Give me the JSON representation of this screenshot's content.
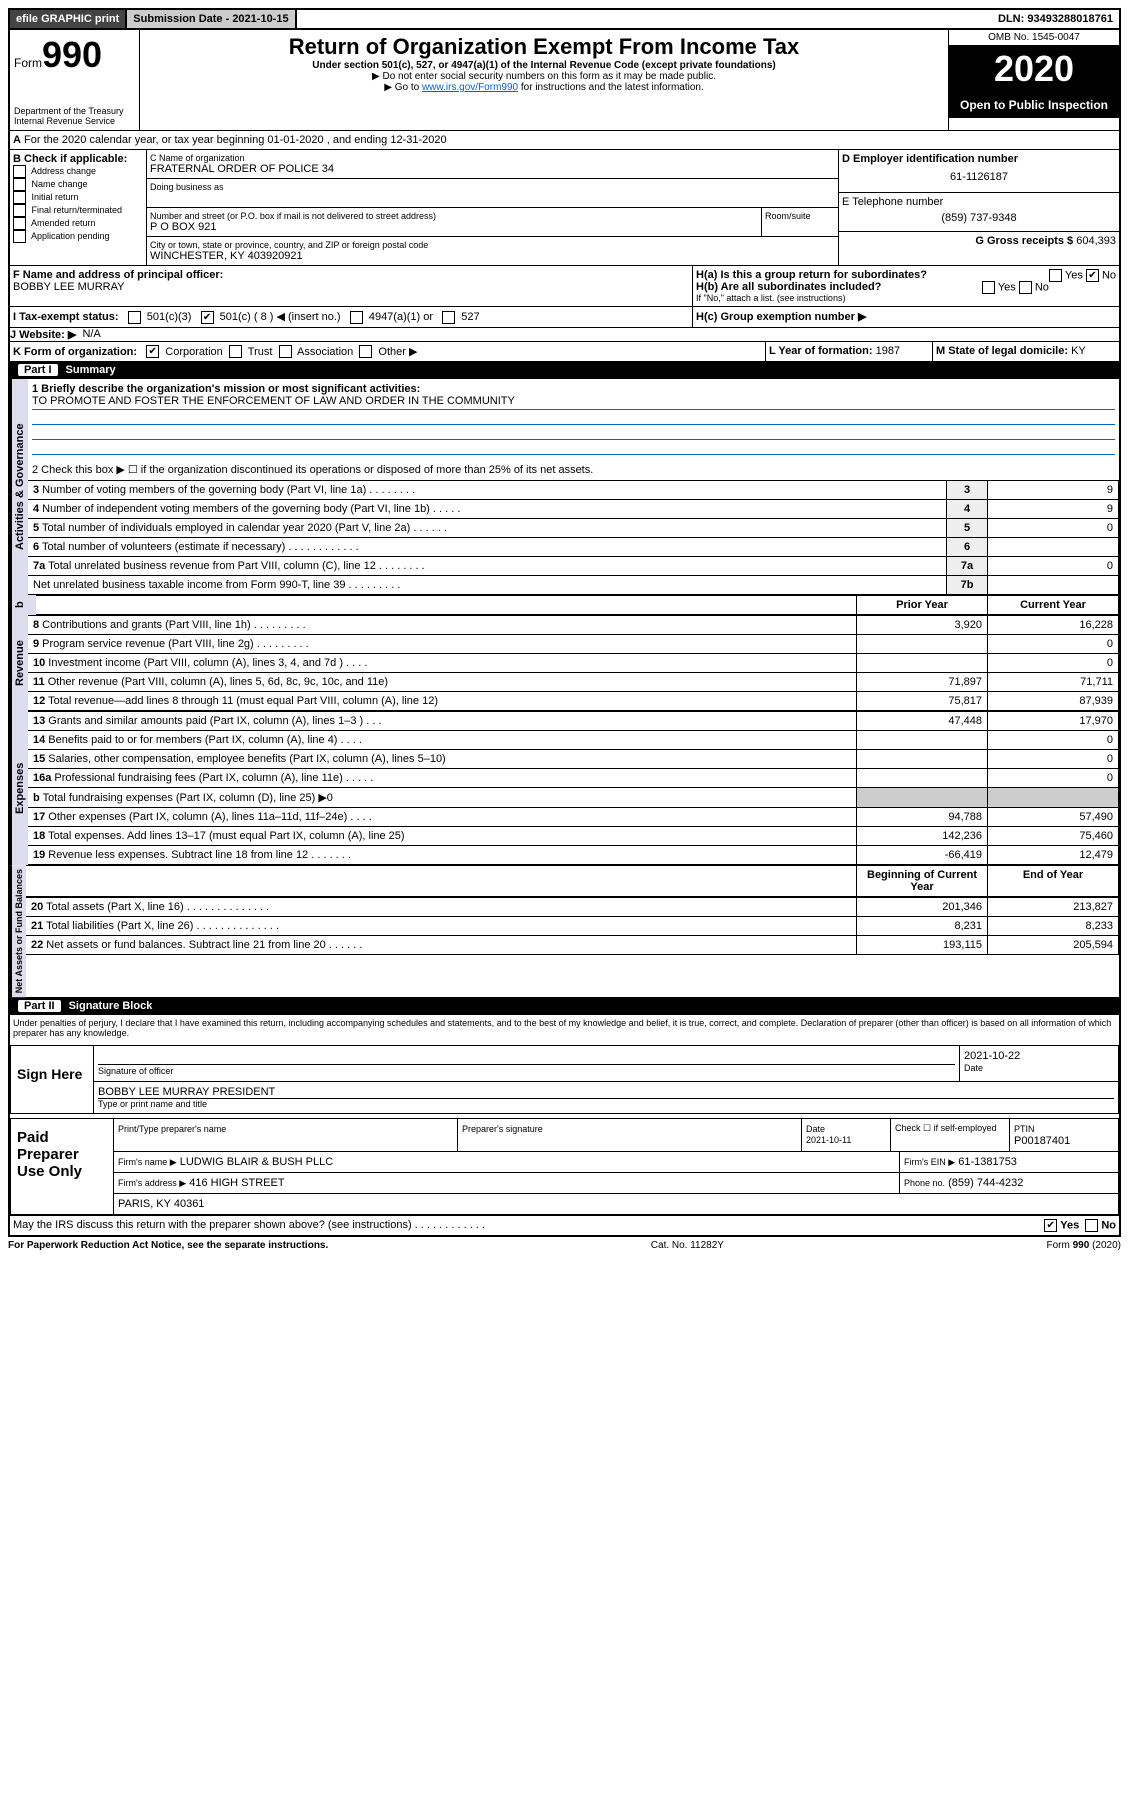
{
  "topbar": {
    "efile": "efile GRAPHIC print",
    "submission_label": "Submission Date - 2021-10-15",
    "dln": "DLN: 93493288018761"
  },
  "header": {
    "form_prefix": "Form",
    "form_number": "990",
    "dept": "Department of the Treasury",
    "irs": "Internal Revenue Service",
    "title": "Return of Organization Exempt From Income Tax",
    "subtitle": "Under section 501(c), 527, or 4947(a)(1) of the Internal Revenue Code (except private foundations)",
    "note1": "▶ Do not enter social security numbers on this form as it may be made public.",
    "note2_pre": "▶ Go to ",
    "note2_link": "www.irs.gov/Form990",
    "note2_post": " for instructions and the latest information.",
    "omb": "OMB No. 1545-0047",
    "year": "2020",
    "open": "Open to Public Inspection"
  },
  "period": "For the 2020 calendar year, or tax year beginning 01-01-2020    , and ending 12-31-2020",
  "blockB": {
    "label": "B Check if applicable:",
    "items": [
      "Address change",
      "Name change",
      "Initial return",
      "Final return/terminated",
      "Amended return",
      "Application pending"
    ]
  },
  "blockC": {
    "name_label": "C Name of organization",
    "name": "FRATERNAL ORDER OF POLICE 34",
    "dba_label": "Doing business as",
    "street_label": "Number and street (or P.O. box if mail is not delivered to street address)",
    "room_label": "Room/suite",
    "street": "P O BOX 921",
    "city_label": "City or town, state or province, country, and ZIP or foreign postal code",
    "city": "WINCHESTER, KY  403920921"
  },
  "blockD": {
    "label": "D Employer identification number",
    "value": "61-1126187"
  },
  "blockE": {
    "label": "E Telephone number",
    "value": "(859) 737-9348"
  },
  "blockG": {
    "label": "G Gross receipts $",
    "value": "604,393"
  },
  "blockF": {
    "label": "F Name and address of principal officer:",
    "name": "BOBBY LEE MURRAY"
  },
  "blockH": {
    "ha": "H(a)  Is this a group return for subordinates?",
    "hb": "H(b)  Are all subordinates included?",
    "hb_note": "If \"No,\" attach a list. (see instructions)",
    "hc": "H(c)  Group exemption number ▶",
    "yes": "Yes",
    "no": "No"
  },
  "blockI": {
    "label": "I  Tax-exempt status:",
    "opt1": "501(c)(3)",
    "opt2": "501(c) ( 8 ) ◀ (insert no.)",
    "opt3": "4947(a)(1) or",
    "opt4": "527"
  },
  "blockJ": {
    "label": "J  Website: ▶",
    "value": "N/A"
  },
  "blockK": {
    "label": "K Form of organization:",
    "opts": [
      "Corporation",
      "Trust",
      "Association",
      "Other ▶"
    ]
  },
  "blockL": {
    "label": "L Year of formation:",
    "value": "1987"
  },
  "blockM": {
    "label": "M State of legal domicile:",
    "value": "KY"
  },
  "part1": {
    "num": "Part I",
    "title": "Summary"
  },
  "summary": {
    "q1_label": "1  Briefly describe the organization's mission or most significant activities:",
    "q1_text": "TO PROMOTE AND FOSTER THE ENFORCEMENT OF LAW AND ORDER IN THE COMMUNITY",
    "q2": "2   Check this box ▶ ☐  if the organization discontinued its operations or disposed of more than 25% of its net assets.",
    "rows_gov": [
      {
        "n": "3",
        "t": "Number of voting members of the governing body (Part VI, line 1a)   .    .    .    .    .    .    .    .",
        "box": "3",
        "v": "9"
      },
      {
        "n": "4",
        "t": "Number of independent voting members of the governing body (Part VI, line 1b)   .    .    .    .    .",
        "box": "4",
        "v": "9"
      },
      {
        "n": "5",
        "t": "Total number of individuals employed in calendar year 2020 (Part V, line 2a)   .    .    .    .    .    .",
        "box": "5",
        "v": "0"
      },
      {
        "n": "6",
        "t": "Total number of volunteers (estimate if necessary)   .    .    .    .    .    .    .    .    .    .    .    .",
        "box": "6",
        "v": ""
      },
      {
        "n": "7a",
        "t": "Total unrelated business revenue from Part VIII, column (C), line 12   .    .    .    .    .    .    .    .",
        "box": "7a",
        "v": "0"
      },
      {
        "n": "",
        "t": "Net unrelated business taxable income from Form 990-T, line 39   .    .    .    .    .    .    .    .    .",
        "box": "7b",
        "v": ""
      }
    ],
    "col_prior": "Prior Year",
    "col_current": "Current Year",
    "rows_rev": [
      {
        "n": "8",
        "t": "Contributions and grants (Part VIII, line 1h)   .    .    .    .    .    .    .    .    .",
        "p": "3,920",
        "c": "16,228"
      },
      {
        "n": "9",
        "t": "Program service revenue (Part VIII, line 2g)   .    .    .    .    .    .    .    .    .",
        "p": "",
        "c": "0"
      },
      {
        "n": "10",
        "t": "Investment income (Part VIII, column (A), lines 3, 4, and 7d )   .    .    .    .",
        "p": "",
        "c": "0"
      },
      {
        "n": "11",
        "t": "Other revenue (Part VIII, column (A), lines 5, 6d, 8c, 9c, 10c, and 11e)",
        "p": "71,897",
        "c": "71,711"
      },
      {
        "n": "12",
        "t": "Total revenue—add lines 8 through 11 (must equal Part VIII, column (A), line 12)",
        "p": "75,817",
        "c": "87,939"
      }
    ],
    "rows_exp": [
      {
        "n": "13",
        "t": "Grants and similar amounts paid (Part IX, column (A), lines 1–3 )   .    .    .",
        "p": "47,448",
        "c": "17,970"
      },
      {
        "n": "14",
        "t": "Benefits paid to or for members (Part IX, column (A), line 4)   .    .    .    .",
        "p": "",
        "c": "0"
      },
      {
        "n": "15",
        "t": "Salaries, other compensation, employee benefits (Part IX, column (A), lines 5–10)",
        "p": "",
        "c": "0"
      },
      {
        "n": "16a",
        "t": "Professional fundraising fees (Part IX, column (A), line 11e)   .    .    .    .    .",
        "p": "",
        "c": "0"
      },
      {
        "n": "b",
        "t": "Total fundraising expenses (Part IX, column (D), line 25) ▶0",
        "p": "GREY",
        "c": "GREY"
      },
      {
        "n": "17",
        "t": "Other expenses (Part IX, column (A), lines 11a–11d, 11f–24e)   .    .    .    .",
        "p": "94,788",
        "c": "57,490"
      },
      {
        "n": "18",
        "t": "Total expenses. Add lines 13–17 (must equal Part IX, column (A), line 25)",
        "p": "142,236",
        "c": "75,460"
      },
      {
        "n": "19",
        "t": "Revenue less expenses. Subtract line 18 from line 12   .    .    .    .    .    .    .",
        "p": "-66,419",
        "c": "12,479"
      }
    ],
    "col_begin": "Beginning of Current Year",
    "col_end": "End of Year",
    "rows_net": [
      {
        "n": "20",
        "t": "Total assets (Part X, line 16)   .    .    .    .    .    .    .    .    .    .    .    .    .    .",
        "p": "201,346",
        "c": "213,827"
      },
      {
        "n": "21",
        "t": "Total liabilities (Part X, line 26)   .    .    .    .    .    .    .    .    .    .    .    .    .    .",
        "p": "8,231",
        "c": "8,233"
      },
      {
        "n": "22",
        "t": "Net assets or fund balances. Subtract line 21 from line 20   .    .    .    .    .    .",
        "p": "193,115",
        "c": "205,594"
      }
    ]
  },
  "vlabels": {
    "gov": "Activities & Governance",
    "rev": "Revenue",
    "exp": "Expenses",
    "net": "Net Assets or Fund Balances"
  },
  "part2": {
    "num": "Part II",
    "title": "Signature Block"
  },
  "sig": {
    "perjury": "Under penalties of perjury, I declare that I have examined this return, including accompanying schedules and statements, and to the best of my knowledge and belief, it is true, correct, and complete. Declaration of preparer (other than officer) is based on all information of which preparer has any knowledge.",
    "sign_here": "Sign Here",
    "sig_officer": "Signature of officer",
    "date_label": "Date",
    "sig_date": "2021-10-22",
    "name_title": "BOBBY LEE MURRAY  PRESIDENT",
    "name_title_label": "Type or print name and title",
    "paid": "Paid Preparer Use Only",
    "prep_name_h": "Print/Type preparer's name",
    "prep_sig_h": "Preparer's signature",
    "prep_date_h": "Date",
    "prep_date": "2021-10-11",
    "self_emp": "Check ☐ if self-employed",
    "ptin_h": "PTIN",
    "ptin": "P00187401",
    "firm_name_l": "Firm's name      ▶",
    "firm_name": "LUDWIG BLAIR & BUSH PLLC",
    "firm_ein_l": "Firm's EIN ▶",
    "firm_ein": "61-1381753",
    "firm_addr_l": "Firm's address ▶",
    "firm_addr1": "416 HIGH STREET",
    "firm_addr2": "PARIS, KY  40361",
    "phone_l": "Phone no.",
    "phone": "(859) 744-4232",
    "discuss": "May the IRS discuss this return with the preparer shown above? (see instructions)   .    .    .    .    .    .    .    .    .    .    .    .",
    "yes": "Yes",
    "no": "No"
  },
  "footer": {
    "pra": "For Paperwork Reduction Act Notice, see the separate instructions.",
    "cat": "Cat. No. 11282Y",
    "form": "Form 990 (2020)"
  }
}
